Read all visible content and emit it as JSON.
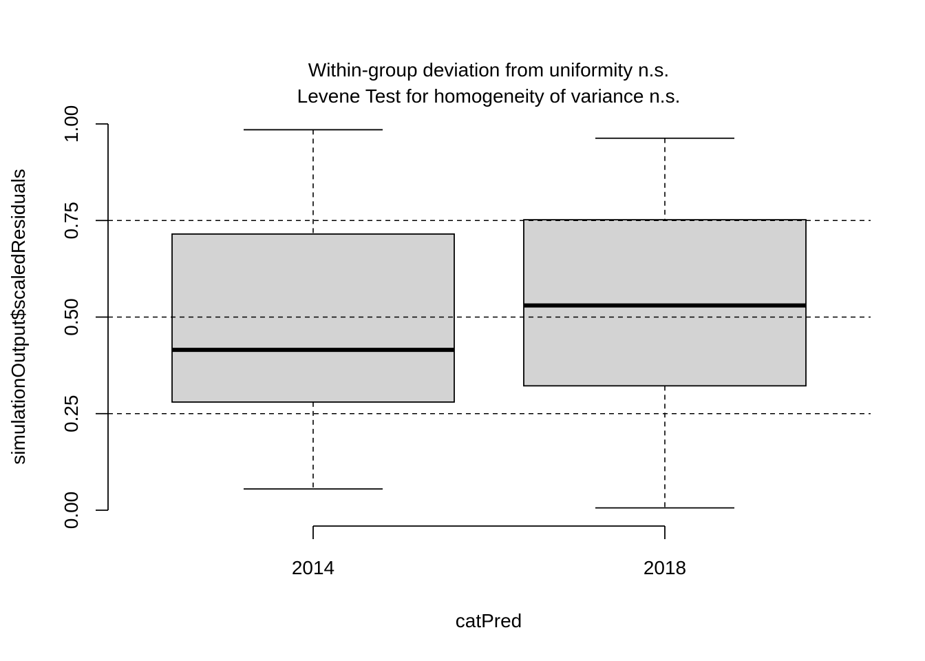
{
  "chart_data": {
    "type": "boxplot",
    "title": "Within-group deviation from uniformity n.s.",
    "subtitle": "Levene Test for homogeneity of variance n.s.",
    "xlabel": "catPred",
    "ylabel": "simulationOutput$scaledResiduals",
    "categories": [
      "2014",
      "2018"
    ],
    "boxes": [
      {
        "category": "2014",
        "min": 0.055,
        "q1": 0.28,
        "median": 0.415,
        "q3": 0.715,
        "max": 0.985
      },
      {
        "category": "2018",
        "min": 0.006,
        "q1": 0.322,
        "median": 0.53,
        "q3": 0.752,
        "max": 0.963
      }
    ],
    "ylim": [
      0,
      1
    ],
    "yticks": [
      "0.00",
      "0.25",
      "0.50",
      "0.75",
      "1.00"
    ],
    "reference_lines": [
      0.25,
      0.5,
      0.75
    ],
    "grid": false,
    "colors": {
      "box_fill": "#d3d3d3",
      "line": "#000000"
    }
  }
}
